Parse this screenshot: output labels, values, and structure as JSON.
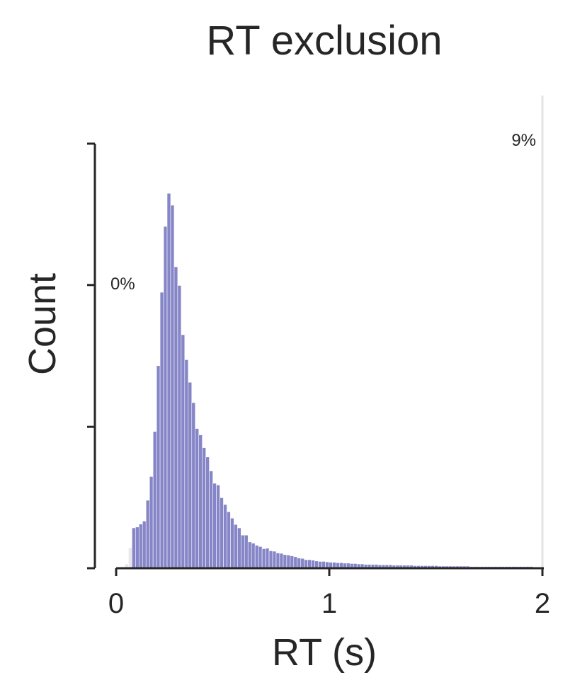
{
  "chart_data": {
    "type": "bar",
    "title": "RT exclusion",
    "xlabel": "RT (s)",
    "ylabel": "Count",
    "xlim": [
      0,
      2
    ],
    "ylim": [
      0,
      1.2
    ],
    "xticks": [
      0,
      1,
      2
    ],
    "xtick_labels": [
      "0",
      "1",
      "2"
    ],
    "yticks": [
      0,
      0.333,
      0.667,
      1
    ],
    "ytick_labels": [
      "",
      "",
      "",
      ""
    ],
    "bin_width": 0.0165,
    "excluded_color": "#e7e7ec",
    "included_color": "#8585c8",
    "excluded": [
      {
        "x": 0.0495,
        "count": 0.01
      },
      {
        "x": 0.066,
        "count": 0.048
      }
    ],
    "series": [
      {
        "color": "#8585c8",
        "x": [
          0.0825,
          0.099,
          0.1155,
          0.132,
          0.1485,
          0.165,
          0.1815,
          0.198,
          0.2145,
          0.231,
          0.2475,
          0.264,
          0.2805,
          0.297,
          0.3135,
          0.33,
          0.3465,
          0.363,
          0.3795,
          0.396,
          0.4125,
          0.429,
          0.4455,
          0.462,
          0.4785,
          0.495,
          0.5115,
          0.528,
          0.5445,
          0.561,
          0.5775,
          0.594,
          0.6105,
          0.627,
          0.6435,
          0.66,
          0.6765,
          0.693,
          0.7095,
          0.726,
          0.7425,
          0.759,
          0.7755,
          0.792,
          0.8085,
          0.825,
          0.8415,
          0.858,
          0.8745,
          0.891,
          0.9075,
          0.924,
          0.9405,
          0.957,
          0.9735,
          0.99,
          1.0065,
          1.023,
          1.0395,
          1.056,
          1.0725,
          1.089,
          1.1055,
          1.122,
          1.1385,
          1.155,
          1.1715,
          1.188,
          1.2045,
          1.221,
          1.2375,
          1.254,
          1.2705,
          1.287,
          1.3035,
          1.32,
          1.3365,
          1.353,
          1.3695,
          1.386,
          1.4025,
          1.419,
          1.4355,
          1.452,
          1.4685,
          1.485,
          1.5015,
          1.518,
          1.5345,
          1.551,
          1.5675,
          1.584,
          1.6005,
          1.617,
          1.6335,
          1.65,
          1.6665,
          1.683,
          1.6995,
          1.716,
          1.7325,
          1.749,
          1.7655,
          1.782,
          1.7985,
          1.815,
          1.8315,
          1.848,
          1.8645,
          1.881,
          1.8975,
          1.914,
          1.9305,
          1.947,
          1.9635,
          1.98
        ],
        "values": [
          0.095,
          0.097,
          0.104,
          0.111,
          0.16,
          0.216,
          0.322,
          0.477,
          0.65,
          0.805,
          0.883,
          0.855,
          0.71,
          0.666,
          0.55,
          0.491,
          0.438,
          0.39,
          0.329,
          0.314,
          0.284,
          0.262,
          0.229,
          0.2,
          0.196,
          0.166,
          0.15,
          0.133,
          0.118,
          0.103,
          0.095,
          0.078,
          0.078,
          0.062,
          0.059,
          0.054,
          0.051,
          0.046,
          0.047,
          0.041,
          0.04,
          0.036,
          0.035,
          0.032,
          0.031,
          0.029,
          0.027,
          0.024,
          0.023,
          0.02,
          0.02,
          0.019,
          0.017,
          0.016,
          0.016,
          0.015,
          0.014,
          0.014,
          0.013,
          0.013,
          0.012,
          0.012,
          0.011,
          0.011,
          0.01,
          0.01,
          0.009,
          0.009,
          0.009,
          0.009,
          0.008,
          0.008,
          0.008,
          0.008,
          0.007,
          0.007,
          0.007,
          0.007,
          0.007,
          0.007,
          0.006,
          0.006,
          0.006,
          0.006,
          0.006,
          0.006,
          0.006,
          0.005,
          0.005,
          0.005,
          0.005,
          0.005,
          0.005,
          0.005,
          0.005,
          0.005,
          0.004,
          0.004,
          0.004,
          0.004,
          0.004,
          0.004,
          0.004,
          0.004,
          0.004,
          0.004,
          0.004,
          0.004,
          0.004,
          0.004,
          0.004,
          0.004,
          0.004,
          0.004,
          0.003,
          0.003
        ]
      }
    ],
    "cutoff_line_x": 2.0,
    "annotations": [
      {
        "text": "0%",
        "side": "left",
        "y": 0.672
      },
      {
        "text": "9%",
        "side": "right",
        "y": 1.01
      }
    ]
  }
}
